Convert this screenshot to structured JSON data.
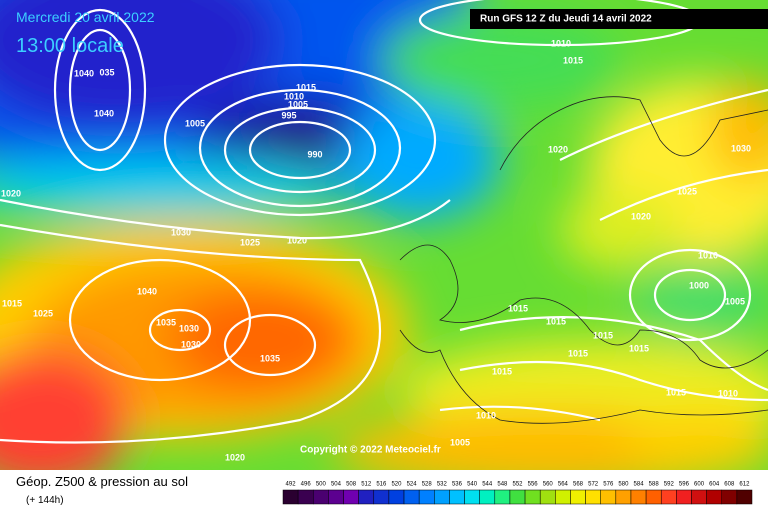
{
  "header": {
    "date": "Mercredi 20 avril 2022",
    "time": "13:00 locale",
    "run": "Run GFS 12 Z du Jeudi 14 avril 2022"
  },
  "copyright": "Copyright © 2022 Meteociel.fr",
  "footer": {
    "title": "Géop. Z500 & pression au sol",
    "lead": "(+ 144h)"
  },
  "isobar_labels": [
    "1040",
    "035",
    "1040",
    "1005",
    "1015",
    "1010",
    "1005",
    "995",
    "990",
    "1010",
    "1015",
    "1020",
    "1030",
    "1025",
    "1020",
    "1020",
    "1030",
    "1025",
    "1020",
    "1010",
    "1000",
    "1005",
    "1040",
    "1035",
    "1030",
    "1030",
    "1035",
    "1015",
    "1015",
    "1015",
    "1015",
    "1015",
    "1015",
    "1015",
    "1010",
    "1010",
    "1005",
    "1020",
    "1015",
    "1025"
  ],
  "scale": {
    "values": [
      492,
      496,
      500,
      504,
      508,
      512,
      516,
      520,
      524,
      528,
      532,
      536,
      540,
      544,
      548,
      552,
      556,
      560,
      564,
      568,
      572,
      576,
      580,
      584,
      588,
      592,
      596,
      600,
      604,
      608,
      612
    ],
    "colors": [
      "#2a0030",
      "#3a0050",
      "#4a0070",
      "#5c0090",
      "#7000b0",
      "#2020c0",
      "#1030d0",
      "#0040e0",
      "#0060f0",
      "#0080ff",
      "#00a0ff",
      "#00c0ff",
      "#00e0f0",
      "#00f0c0",
      "#20f080",
      "#40e040",
      "#70e020",
      "#a0e010",
      "#d0f000",
      "#f0f000",
      "#ffe000",
      "#ffc000",
      "#ffa000",
      "#ff8000",
      "#ff6000",
      "#ff4020",
      "#f02020",
      "#d01010",
      "#b00000",
      "#800000",
      "#500000"
    ]
  }
}
